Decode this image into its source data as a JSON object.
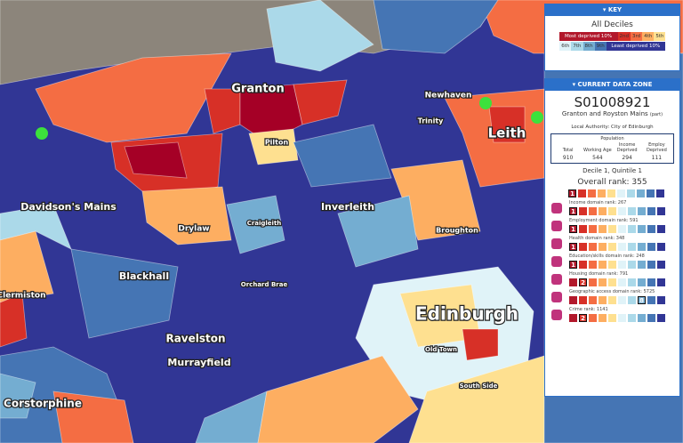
{
  "map_labels": [
    "Granton",
    "Newhaven",
    "Leith",
    "Pilton",
    "Trinity",
    "Davidson's Mains",
    "Inverleith",
    "Drylaw",
    "Craigleith",
    "Broughton",
    "Blackhall",
    "Orchard Brae",
    "Clermiston",
    "Edinburgh",
    "Ravelston",
    "Murrayfield",
    "Old Town",
    "South Side",
    "Corstorphine"
  ],
  "key": {
    "title": "KEY",
    "heading": "All Deciles",
    "deciles": [
      {
        "label": "Most deprived 10%",
        "color": "#b2182b"
      },
      {
        "label": "2nd",
        "color": "#d73027"
      },
      {
        "label": "3rd",
        "color": "#f46d43"
      },
      {
        "label": "4th",
        "color": "#fdae61"
      },
      {
        "label": "5th",
        "color": "#fee090"
      },
      {
        "label": "6th",
        "color": "#e0f3f8"
      },
      {
        "label": "7th",
        "color": "#abd9e9"
      },
      {
        "label": "8th",
        "color": "#74add1"
      },
      {
        "label": "9th",
        "color": "#4575b4"
      },
      {
        "label": "Least deprived 10%",
        "color": "#313695"
      }
    ]
  },
  "data_zone": {
    "title": "CURRENT DATA ZONE",
    "code": "S01008921",
    "name": "Granton and Royston Mains",
    "name_note": "(part)",
    "local_authority": "Local Authority: City of Edinburgh",
    "population": {
      "title": "Population",
      "headers": [
        "Total",
        "Working Age",
        "Income Deprived",
        "Employ Deprived"
      ],
      "values": [
        "910",
        "544",
        "294",
        "111"
      ]
    },
    "decile_line": "Decile 1, Quintile 1",
    "overall": {
      "label": "Overall rank: 355",
      "decile": 1
    },
    "domains": [
      {
        "label": "Income domain rank: 267",
        "decile": 1
      },
      {
        "label": "Employment domain rank: 591",
        "decile": 1
      },
      {
        "label": "Health domain rank: 348",
        "decile": 1
      },
      {
        "label": "Education/skills domain rank: 248",
        "decile": 1
      },
      {
        "label": "Housing domain rank: 791",
        "decile": 2
      },
      {
        "label": "Geographic access domain rank: 5725",
        "decile": 8
      },
      {
        "label": "Crime rank: 1141",
        "decile": 2
      }
    ]
  }
}
